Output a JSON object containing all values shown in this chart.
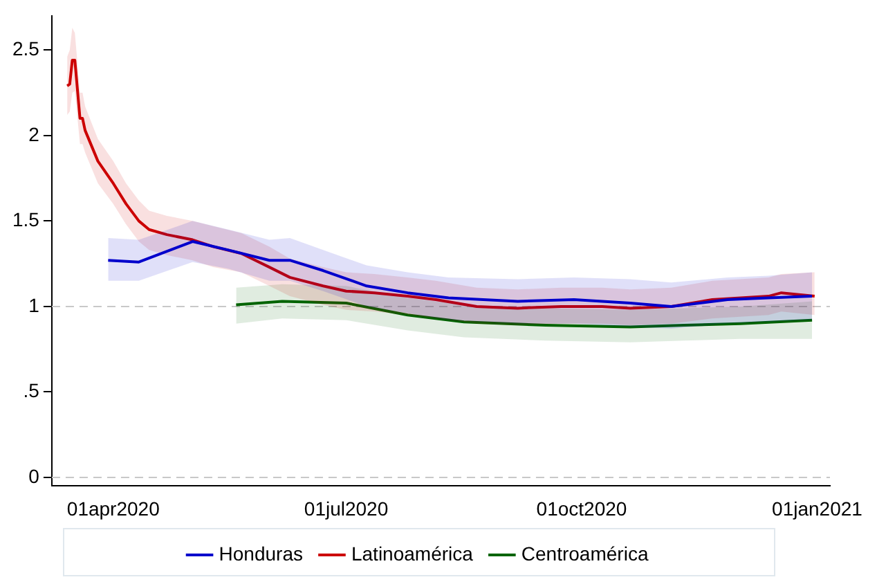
{
  "chart_data": {
    "type": "line",
    "xlim": [
      "2020-03-08",
      "2021-01-06"
    ],
    "xticks": [
      {
        "value": "2020-04-01",
        "label": "01apr2020"
      },
      {
        "value": "2020-07-01",
        "label": "01jul2020"
      },
      {
        "value": "2020-10-01",
        "label": "01oct2020"
      },
      {
        "value": "2021-01-01",
        "label": "01jan2021"
      }
    ],
    "ylim": [
      -0.05,
      2.7
    ],
    "yticks": [
      0,
      {
        "value": 0.5,
        "label": ".5"
      },
      1,
      1.5,
      2,
      2.5
    ],
    "grid": false,
    "legend": "bottom",
    "marker": "none",
    "line_style": "solid",
    "ref_lines": [
      {
        "axis": "y",
        "value": 0,
        "color": "#c8c8c8",
        "line_style": "dashed"
      },
      {
        "axis": "y",
        "value": 1,
        "color": "#c8c8c8",
        "line_style": "dashed"
      }
    ],
    "series": [
      {
        "name": "Honduras",
        "color": "#0000cc",
        "x": [
          "2020-03-30",
          "2020-04-11",
          "2020-05-02",
          "2020-05-16",
          "2020-06-01",
          "2020-06-09",
          "2020-06-22",
          "2020-07-09",
          "2020-07-25",
          "2020-08-10",
          "2020-09-06",
          "2020-09-28",
          "2020-10-20",
          "2020-11-05",
          "2020-11-27",
          "2020-12-13",
          "2020-12-30"
        ],
        "values": [
          1.27,
          1.26,
          1.38,
          1.33,
          1.27,
          1.27,
          1.21,
          1.12,
          1.08,
          1.05,
          1.03,
          1.04,
          1.02,
          1.0,
          1.04,
          1.05,
          1.06
        ],
        "lower": [
          1.15,
          1.15,
          1.26,
          1.22,
          1.15,
          1.15,
          1.09,
          1.0,
          0.96,
          0.92,
          0.9,
          0.9,
          0.88,
          0.87,
          0.9,
          0.91,
          0.92
        ],
        "upper": [
          1.4,
          1.39,
          1.5,
          1.45,
          1.39,
          1.4,
          1.33,
          1.24,
          1.2,
          1.17,
          1.16,
          1.17,
          1.16,
          1.14,
          1.17,
          1.18,
          1.2
        ]
      },
      {
        "name": "Latinoamérica",
        "color": "#cc0000",
        "x": [
          "2020-03-14",
          "2020-03-15",
          "2020-03-16",
          "2020-03-17",
          "2020-03-19",
          "2020-03-20",
          "2020-03-21",
          "2020-03-26",
          "2020-04-01",
          "2020-04-06",
          "2020-04-11",
          "2020-04-15",
          "2020-04-22",
          "2020-05-02",
          "2020-05-10",
          "2020-05-21",
          "2020-06-01",
          "2020-06-09",
          "2020-06-22",
          "2020-07-01",
          "2020-07-12",
          "2020-07-25",
          "2020-08-05",
          "2020-08-21",
          "2020-09-06",
          "2020-09-23",
          "2020-10-09",
          "2020-10-20",
          "2020-11-05",
          "2020-11-21",
          "2020-12-13",
          "2020-12-18",
          "2020-12-31"
        ],
        "values": [
          2.29,
          2.3,
          2.44,
          2.44,
          2.1,
          2.1,
          2.03,
          1.85,
          1.72,
          1.6,
          1.5,
          1.45,
          1.42,
          1.39,
          1.35,
          1.31,
          1.23,
          1.17,
          1.12,
          1.09,
          1.08,
          1.06,
          1.04,
          1.0,
          0.99,
          1.0,
          1.0,
          0.99,
          1.0,
          1.04,
          1.06,
          1.08,
          1.06
        ],
        "lower": [
          2.12,
          2.14,
          2.25,
          2.26,
          1.95,
          1.95,
          1.9,
          1.72,
          1.6,
          1.48,
          1.38,
          1.33,
          1.3,
          1.27,
          1.23,
          1.2,
          1.12,
          1.06,
          1.01,
          0.98,
          0.97,
          0.95,
          0.93,
          0.9,
          0.89,
          0.9,
          0.9,
          0.89,
          0.9,
          0.93,
          0.95,
          0.97,
          0.95
        ],
        "upper": [
          2.46,
          2.5,
          2.63,
          2.6,
          2.25,
          2.25,
          2.17,
          1.98,
          1.85,
          1.72,
          1.62,
          1.56,
          1.53,
          1.5,
          1.47,
          1.43,
          1.35,
          1.28,
          1.23,
          1.2,
          1.19,
          1.17,
          1.15,
          1.11,
          1.1,
          1.11,
          1.11,
          1.1,
          1.11,
          1.15,
          1.17,
          1.19,
          1.2
        ]
      },
      {
        "name": "Centroamérica",
        "color": "#006400",
        "x": [
          "2020-05-19",
          "2020-06-06",
          "2020-07-01",
          "2020-07-25",
          "2020-08-16",
          "2020-09-17",
          "2020-10-20",
          "2020-11-10",
          "2020-12-02",
          "2020-12-30"
        ],
        "values": [
          1.01,
          1.03,
          1.02,
          0.95,
          0.91,
          0.89,
          0.88,
          0.89,
          0.9,
          0.92
        ],
        "lower": [
          0.9,
          0.93,
          0.92,
          0.86,
          0.82,
          0.8,
          0.79,
          0.8,
          0.81,
          0.81
        ],
        "upper": [
          1.11,
          1.13,
          1.12,
          1.05,
          1.01,
          0.99,
          0.98,
          0.99,
          1.0,
          1.03
        ]
      }
    ]
  }
}
